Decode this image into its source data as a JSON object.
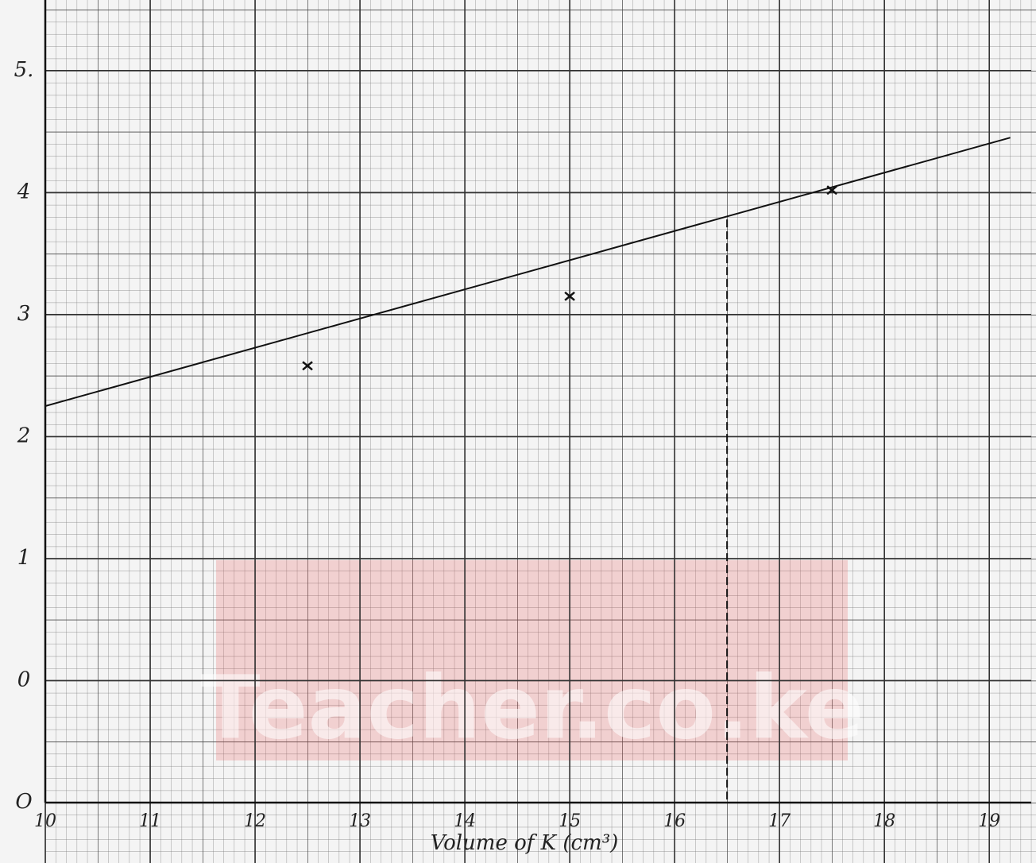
{
  "chart_data": {
    "type": "scatter",
    "x_label": "Volume of K (cm³)",
    "watermark": "Teacher.co.ke",
    "x": [
      12.5,
      15,
      17.5
    ],
    "values": [
      2.58,
      3.15,
      4.02
    ],
    "color": "#111111",
    "fit_line": {
      "x": [
        10,
        19.2
      ],
      "values": [
        2.25,
        4.45
      ]
    },
    "guide": {
      "x": 16.5,
      "y": 3.78
    },
    "xlim": [
      10,
      19.4
    ],
    "ylim": [
      -1,
      5.5
    ],
    "xticks": [
      10,
      11,
      12,
      13,
      14,
      15,
      16,
      17,
      18,
      19
    ],
    "yticks": [
      {
        "value": 5,
        "label": "5."
      },
      4,
      3,
      2,
      1,
      0,
      {
        "value": -1,
        "label": "O"
      }
    ],
    "grid": true
  }
}
